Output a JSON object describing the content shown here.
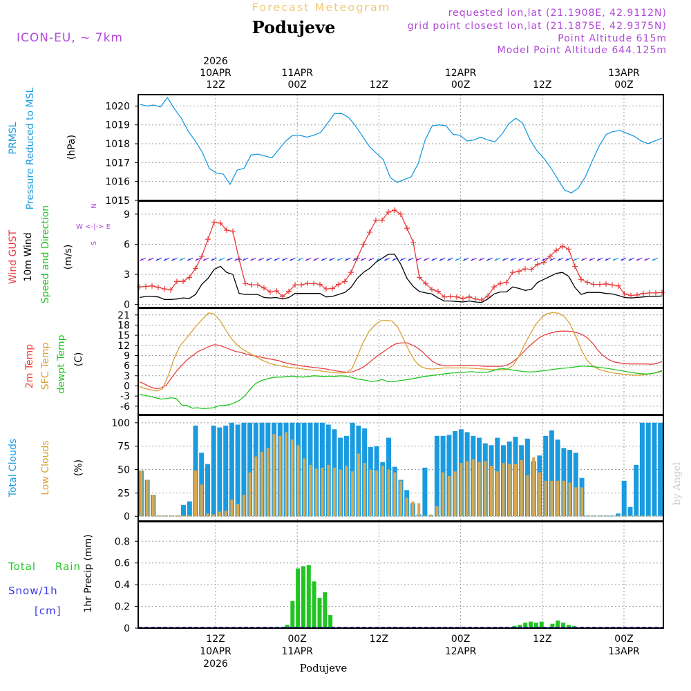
{
  "header": {
    "subtitle": "Forecast Meteogram",
    "location": "Podujeve",
    "model": "ICON-EU, ~ 7km",
    "requested": "requested lon,lat (21.1908E, 42.9112N)",
    "grid_point": "grid point closest lon,lat (21.1875E, 42.9375N)",
    "point_altitude": "Point Altitude 615m",
    "model_altitude": "Model Point Altitude 644.125m",
    "watermark": "by Angel",
    "footer_location": "Podujeve"
  },
  "colors": {
    "pressure": "#1a9be0",
    "gust": "#e83a3a",
    "wind": "#000000",
    "temp2m": "#e84040",
    "sfc": "#d9a030",
    "dewpt": "#1ec41e",
    "total_clouds": "#1a9be0",
    "low_clouds": "#d9a84e",
    "rain": "#22c422",
    "snow": "#3a3ae8",
    "meta": "#b048d8",
    "subtitle": "#f0c870"
  },
  "time_axis": {
    "hours": 64,
    "top_labels": [
      {
        "hour": 9,
        "lines": [
          "2026",
          "10APR",
          "12Z"
        ]
      },
      {
        "hour": 21,
        "lines": [
          "11APR",
          "00Z"
        ]
      },
      {
        "hour": 33,
        "lines": [
          "12Z"
        ]
      },
      {
        "hour": 45,
        "lines": [
          "12APR",
          "00Z"
        ]
      },
      {
        "hour": 57,
        "lines": [
          "12Z"
        ]
      },
      {
        "hour": 69,
        "lines": [
          "13APR",
          "00Z"
        ]
      }
    ],
    "bottom_labels": [
      {
        "hour": 9,
        "lines": [
          "12Z",
          "10APR",
          "2026"
        ]
      },
      {
        "hour": 21,
        "lines": [
          "00Z",
          "11APR"
        ]
      },
      {
        "hour": 33,
        "lines": [
          "12Z"
        ]
      },
      {
        "hour": 45,
        "lines": [
          "00Z",
          "12APR"
        ]
      },
      {
        "hour": 57,
        "lines": [
          "12Z"
        ]
      },
      {
        "hour": 69,
        "lines": [
          "00Z",
          "13APR"
        ]
      }
    ]
  },
  "chart_data": [
    {
      "type": "line",
      "panel": "pressure",
      "ylabel": [
        "PRMSL",
        "Pressure Reduced to MSL"
      ],
      "units": "(hPa)",
      "ylim": [
        1015,
        1020.6
      ],
      "yticks": [
        "1020",
        "1019",
        "1018",
        "1017",
        "1016",
        "1015"
      ],
      "series": [
        {
          "name": "PRMSL",
          "values": [
            1020.1,
            1020.0,
            1020.05,
            1019.95,
            1020.45,
            1019.85,
            1019.35,
            1018.65,
            1018.15,
            1017.55,
            1016.7,
            1016.45,
            1016.4,
            1015.85,
            1016.6,
            1016.7,
            1017.4,
            1017.45,
            1017.35,
            1017.25,
            1017.7,
            1018.15,
            1018.45,
            1018.45,
            1018.35,
            1018.45,
            1018.6,
            1019.1,
            1019.6,
            1019.6,
            1019.4,
            1018.95,
            1018.4,
            1017.85,
            1017.5,
            1017.15,
            1016.2,
            1015.95,
            1016.1,
            1016.25,
            1016.95,
            1018.2,
            1018.95,
            1019.0,
            1018.95,
            1018.5,
            1018.45,
            1018.15,
            1018.2,
            1018.35,
            1018.2,
            1018.1,
            1018.5,
            1019.05,
            1019.35,
            1019.1,
            1018.25,
            1017.65,
            1017.25,
            1016.75,
            1016.15,
            1015.55,
            1015.4,
            1015.65,
            1016.25,
            1017.1,
            1017.9,
            1018.5,
            1018.65,
            1018.7,
            1018.55,
            1018.4,
            1018.15,
            1018.0,
            1018.15,
            1018.3
          ]
        }
      ]
    },
    {
      "type": "line",
      "panel": "wind",
      "ylabel": [
        "Wind GUST",
        "10m Wind",
        "Speed and Direction"
      ],
      "units": "(m/s)",
      "compass": [
        "N",
        "W <-|-> E",
        "S"
      ],
      "ylim": [
        -0.3,
        10.3
      ],
      "yticks": [
        "9",
        "6",
        "3",
        "0"
      ],
      "series": [
        {
          "name": "Wind GUST",
          "values": [
            1.75,
            1.8,
            1.85,
            1.7,
            1.55,
            1.45,
            2.3,
            2.3,
            2.7,
            3.6,
            4.8,
            6.5,
            8.2,
            8.1,
            7.4,
            7.3,
            4.5,
            2.1,
            1.95,
            1.95,
            1.65,
            1.25,
            1.35,
            0.8,
            1.3,
            1.95,
            1.95,
            2.1,
            2.1,
            2.0,
            1.55,
            1.6,
            2.0,
            2.3,
            3.2,
            4.6,
            6.0,
            7.2,
            8.4,
            8.4,
            9.2,
            9.4,
            9.0,
            7.6,
            6.2,
            2.7,
            2.1,
            1.5,
            1.3,
            0.75,
            0.8,
            0.75,
            0.6,
            0.75,
            0.55,
            0.45,
            0.85,
            1.75,
            2.1,
            2.2,
            3.2,
            3.3,
            3.55,
            3.5,
            4.0,
            4.2,
            4.8,
            5.4,
            5.8,
            5.5,
            3.8,
            2.5,
            2.2,
            2.0,
            2.0,
            2.05,
            1.95,
            1.85,
            1.05,
            0.9,
            0.95,
            1.1,
            1.15,
            1.15,
            1.2
          ]
        },
        {
          "name": "10m Wind",
          "values": [
            0.7,
            0.8,
            0.8,
            0.75,
            0.5,
            0.5,
            0.55,
            0.65,
            0.6,
            1.0,
            2.0,
            2.6,
            3.5,
            3.8,
            3.2,
            3.0,
            1.1,
            1.0,
            1.0,
            1.0,
            0.7,
            0.65,
            0.7,
            0.55,
            0.7,
            1.1,
            1.1,
            1.1,
            1.1,
            1.1,
            0.75,
            0.8,
            1.0,
            1.2,
            1.7,
            2.6,
            3.2,
            3.6,
            4.2,
            4.6,
            5.0,
            5.0,
            4.0,
            2.6,
            1.8,
            1.3,
            1.15,
            1.05,
            0.65,
            0.35,
            0.35,
            0.3,
            0.25,
            0.35,
            0.25,
            0.2,
            0.55,
            1.05,
            1.25,
            1.25,
            1.75,
            1.6,
            1.4,
            1.5,
            2.2,
            2.5,
            2.8,
            3.1,
            3.2,
            2.8,
            1.7,
            1.0,
            1.2,
            1.2,
            1.2,
            1.1,
            1.05,
            0.9,
            0.7,
            0.65,
            0.7,
            0.75,
            0.8,
            0.8,
            0.85
          ]
        }
      ]
    },
    {
      "type": "line",
      "panel": "temperature",
      "ylabel": [
        "2m Temp",
        "SFC Temp",
        "dewpt Temp"
      ],
      "units": "(C)",
      "ylim": [
        -8.5,
        23
      ],
      "yticks": [
        "21",
        "18",
        "15",
        "12",
        "9",
        "6",
        "3",
        "0",
        "-3",
        "-6"
      ],
      "series": [
        {
          "name": "2m Temp",
          "values": [
            1.2,
            0.5,
            -0.3,
            -0.8,
            -0.6,
            0.2,
            2.4,
            4.5,
            6.2,
            7.8,
            9.0,
            10.2,
            10.9,
            11.6,
            12.2,
            12.0,
            11.4,
            10.8,
            10.2,
            9.9,
            9.4,
            9.0,
            8.8,
            8.4,
            8.1,
            7.8,
            7.5,
            7.0,
            6.6,
            6.3,
            6.0,
            5.8,
            5.6,
            5.4,
            5.2,
            5.0,
            4.7,
            4.4,
            4.2,
            4.0,
            4.2,
            4.8,
            5.6,
            6.8,
            8.1,
            9.3,
            10.4,
            11.5,
            12.4,
            12.7,
            12.8,
            12.2,
            11.4,
            10.2,
            8.6,
            7.2,
            6.4,
            6.0,
            5.9,
            6.0,
            6.1,
            6.1,
            6.1,
            6.0,
            5.9,
            5.8,
            5.8,
            5.8,
            5.8,
            6.2,
            7.1,
            8.4,
            10.0,
            11.6,
            13.0,
            14.3,
            15.1,
            15.6,
            16.0,
            16.2,
            16.2,
            16.1,
            15.8,
            15.2,
            14.2,
            12.6,
            10.5,
            8.9,
            7.8,
            7.1,
            6.8,
            6.6,
            6.5,
            6.5,
            6.5,
            6.5,
            6.4,
            6.6,
            7.2
          ]
        },
        {
          "name": "SFC Temp",
          "values": [
            -0.2,
            -0.8,
            -1.2,
            -1.5,
            -0.9,
            3.0,
            8.0,
            11.8,
            13.8,
            15.9,
            18.0,
            19.8,
            21.6,
            21.3,
            19.4,
            16.6,
            14.0,
            12.1,
            10.8,
            9.8,
            8.9,
            7.9,
            7.1,
            6.5,
            6.1,
            5.8,
            5.5,
            5.3,
            5.1,
            4.9,
            4.7,
            4.6,
            4.3,
            4.1,
            3.9,
            3.8,
            3.9,
            5.1,
            9.0,
            13.1,
            16.2,
            18.0,
            19.3,
            19.4,
            19.2,
            17.3,
            13.8,
            10.2,
            7.3,
            5.7,
            5.1,
            5.0,
            5.1,
            5.3,
            5.3,
            5.3,
            5.3,
            5.3,
            5.2,
            5.1,
            5.0,
            4.9,
            4.8,
            4.7,
            4.9,
            6.0,
            8.5,
            12.0,
            15.2,
            18.2,
            20.2,
            21.4,
            21.7,
            21.5,
            20.5,
            18.3,
            14.6,
            10.5,
            7.5,
            5.8,
            4.9,
            4.4,
            4.0,
            3.7,
            3.5,
            3.3,
            3.2,
            3.2,
            3.3,
            3.6,
            3.9,
            4.2
          ]
        },
        {
          "name": "dewpt Temp",
          "values": [
            -2.5,
            -2.8,
            -3.1,
            -3.5,
            -3.9,
            -3.8,
            -3.5,
            -3.8,
            -5.7,
            -5.8,
            -6.6,
            -6.5,
            -6.7,
            -6.6,
            -6.5,
            -5.9,
            -5.8,
            -5.6,
            -5.0,
            -4.2,
            -2.9,
            -0.9,
            0.7,
            1.5,
            2.0,
            2.4,
            2.6,
            2.6,
            2.8,
            2.9,
            2.7,
            2.6,
            2.8,
            3.0,
            2.9,
            2.8,
            2.9,
            2.8,
            3.0,
            2.9,
            2.6,
            2.1,
            1.9,
            1.6,
            1.3,
            1.5,
            1.9,
            1.3,
            1.2,
            1.5,
            1.7,
            1.9,
            2.2,
            2.5,
            2.8,
            3.0,
            3.2,
            3.4,
            3.6,
            3.8,
            3.9,
            4.0,
            4.1,
            4.2,
            4.0,
            4.0,
            4.1,
            4.5,
            5.0,
            5.1,
            4.9,
            4.6,
            4.4,
            4.2,
            4.1,
            4.2,
            4.4,
            4.6,
            4.8,
            5.0,
            5.2,
            5.3,
            5.5,
            5.7,
            5.9,
            5.8,
            5.7,
            5.5,
            5.3,
            5.1,
            4.8,
            4.6,
            4.3,
            4.0,
            3.8,
            3.6,
            3.5,
            3.6,
            4.0,
            4.5
          ]
        }
      ]
    },
    {
      "type": "bar",
      "panel": "clouds",
      "ylabel": [
        "Total Clouds",
        "Low Clouds"
      ],
      "units": "(%)",
      "ylim": [
        -5,
        108
      ],
      "yticks": [
        "100",
        "75",
        "50",
        "25",
        "0"
      ],
      "series": [
        {
          "name": "Total Clouds",
          "values": [
            49,
            39,
            23,
            1,
            1,
            1,
            1,
            12,
            16,
            97,
            68,
            56,
            97,
            95,
            97,
            100,
            98,
            100,
            100,
            100,
            100,
            100,
            100,
            100,
            100,
            100,
            100,
            100,
            100,
            100,
            100,
            98,
            93,
            84,
            86,
            100,
            97,
            94,
            74,
            75,
            58,
            84,
            53,
            39,
            28,
            14,
            2,
            52,
            1,
            86,
            86,
            87,
            91,
            93,
            90,
            86,
            84,
            78,
            76,
            84,
            76,
            80,
            85,
            76,
            83,
            59,
            65,
            86,
            92,
            82,
            73,
            71,
            68,
            41,
            1,
            1,
            1,
            1,
            1,
            3,
            38,
            10,
            55,
            100,
            100,
            100,
            100
          ]
        },
        {
          "name": "Low Clouds",
          "values": [
            49,
            39,
            23,
            1,
            1,
            1,
            1,
            1,
            1,
            49,
            34,
            3,
            2,
            5,
            6,
            18,
            13,
            23,
            47,
            64,
            69,
            73,
            88,
            86,
            90,
            82,
            76,
            62,
            55,
            51,
            52,
            55,
            52,
            50,
            54,
            48,
            67,
            57,
            50,
            49,
            54,
            50,
            47,
            38,
            20,
            16,
            14,
            1,
            2,
            11,
            47,
            43,
            48,
            57,
            59,
            61,
            58,
            59,
            54,
            48,
            57,
            56,
            56,
            60,
            44,
            63,
            47,
            38,
            38,
            38,
            38,
            36,
            31,
            31,
            1,
            1,
            1,
            1,
            1,
            1,
            1,
            1,
            1,
            1,
            1,
            1,
            1
          ]
        }
      ]
    },
    {
      "type": "bar",
      "panel": "precip",
      "ylabel": [
        "1hr Precip (mm)"
      ],
      "legend": [
        "Total",
        "Rain",
        "Snow/1h",
        "[cm]"
      ],
      "ylim": [
        0,
        0.98
      ],
      "yticks": [
        "0.8",
        "0.6",
        "0.4",
        "0.2",
        "0"
      ],
      "series": [
        {
          "name": "Total Rain",
          "values": [
            0,
            0,
            0,
            0,
            0,
            0,
            0,
            0,
            0,
            0,
            0,
            0,
            0,
            0,
            0,
            0,
            0,
            0,
            0,
            0,
            0,
            0,
            0,
            0,
            0,
            0,
            0,
            0.03,
            0.25,
            0.55,
            0.57,
            0.58,
            0.43,
            0.28,
            0.33,
            0.12,
            0,
            0,
            0,
            0,
            0,
            0,
            0,
            0,
            0,
            0,
            0,
            0,
            0,
            0,
            0,
            0,
            0,
            0,
            0,
            0,
            0,
            0,
            0,
            0,
            0,
            0,
            0,
            0,
            0,
            0,
            0,
            0,
            0,
            0.02,
            0.03,
            0.05,
            0.06,
            0.05,
            0.06,
            0,
            0.04,
            0.07,
            0.05,
            0.03,
            0.02,
            0,
            0,
            0,
            0,
            0,
            0,
            0,
            0,
            0,
            0,
            0,
            0,
            0,
            0,
            0,
            0
          ]
        }
      ]
    }
  ]
}
